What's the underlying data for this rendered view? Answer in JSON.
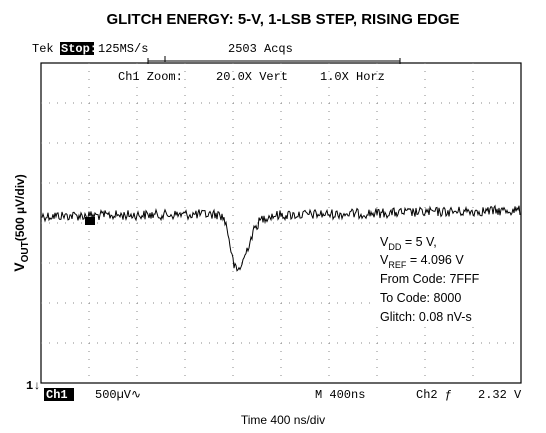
{
  "title": "GLITCH ENERGY: 5-V, 1-LSB STEP, RISING EDGE",
  "scope": {
    "header": {
      "brand": "Tek",
      "state": "Stop:",
      "rate": "125MS/s",
      "acqs": "2503 Acqs"
    },
    "zoom": {
      "label": "Ch1 Zoom:",
      "vert": "20.0X Vert",
      "horz": "1.0X Horz"
    },
    "footer": {
      "channel": "Ch1",
      "scale": "500µV∿",
      "time": "M  400ns",
      "trigger": "Ch2 ƒ",
      "level": "2.32 V"
    },
    "marker": "1↓"
  },
  "annotation": {
    "vdd": {
      "base": "V",
      "sub": "DD",
      "rest": " = 5 V,"
    },
    "vref": {
      "base": "V",
      "sub": "REF",
      "rest": " = 4.096 V"
    },
    "from": "From Code: 7FFF",
    "to": "To Code: 8000",
    "glitch": "Glitch: 0.08 nV-s"
  },
  "y_axis": {
    "base": "V",
    "sub": "OUT",
    "rest": "(500 µV/div)"
  },
  "x_axis": "Time 400 ns/div"
}
